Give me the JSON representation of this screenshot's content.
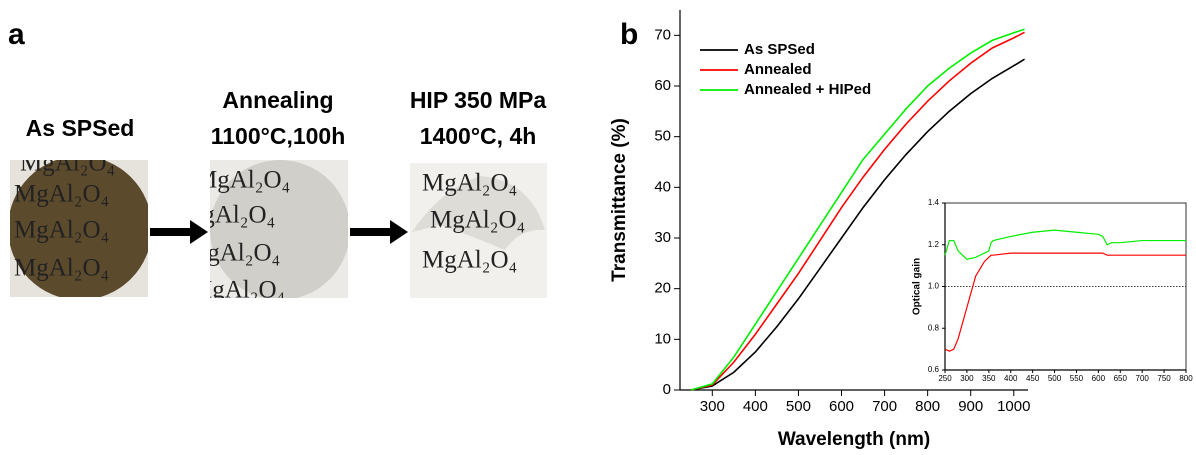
{
  "panel_a": {
    "label": "a",
    "sample_text": "MgAl₂O₄",
    "steps": [
      {
        "lines": [
          "As SPSed"
        ]
      },
      {
        "lines": [
          "Annealing",
          "1100°C,100h"
        ]
      },
      {
        "lines": [
          "HIP 350 MPa",
          "1400°C, 4h"
        ]
      }
    ]
  },
  "chart_data": [
    {
      "type": "line",
      "panel_label": "b",
      "x_label": "Wavelength (nm)",
      "y_label": "Transmittance (%)",
      "x": [
        250,
        300,
        350,
        400,
        450,
        500,
        550,
        600,
        650,
        700,
        750,
        800,
        850,
        900,
        950,
        1000,
        1025
      ],
      "series": [
        {
          "name": "As SPSed",
          "color": "#000000",
          "values": [
            0,
            0.8,
            3.5,
            7.5,
            12.5,
            18,
            24,
            30,
            36,
            41.5,
            46.5,
            51,
            55,
            58.5,
            61.5,
            64,
            65.3
          ]
        },
        {
          "name": "Annealed",
          "color": "#ff0000",
          "values": [
            0,
            1,
            5.5,
            11,
            17,
            23,
            29.5,
            36,
            42,
            47.5,
            52.5,
            57,
            61,
            64.5,
            67.5,
            69.5,
            70.6
          ]
        },
        {
          "name": "Annealed + HIPed",
          "color": "#00ee00",
          "values": [
            0,
            1.2,
            6.5,
            13,
            19.5,
            26,
            32.5,
            39,
            45.5,
            50.5,
            55.5,
            60,
            63.5,
            66.5,
            69,
            70.5,
            71.2
          ]
        }
      ],
      "xlim": [
        225,
        1033
      ],
      "ylim": [
        0,
        75
      ],
      "xticks": [
        300,
        400,
        500,
        600,
        700,
        800,
        900,
        1000
      ],
      "yticks": [
        0,
        10,
        20,
        30,
        40,
        50,
        60,
        70
      ],
      "legend": "upper left"
    },
    {
      "type": "line",
      "y_label": "Optical gain",
      "x": [
        250,
        260,
        270,
        280,
        300,
        320,
        340,
        350,
        355,
        360,
        400,
        450,
        500,
        550,
        600,
        610,
        620,
        630,
        650,
        700,
        750,
        800
      ],
      "series": [
        {
          "color": "#ff0000",
          "values": [
            0.7,
            0.69,
            0.7,
            0.75,
            0.9,
            1.05,
            1.12,
            1.14,
            1.15,
            1.15,
            1.16,
            1.16,
            1.16,
            1.16,
            1.16,
            1.16,
            1.15,
            1.15,
            1.15,
            1.15,
            1.15,
            1.15
          ]
        },
        {
          "color": "#00ee00",
          "values": [
            1.15,
            1.22,
            1.22,
            1.17,
            1.13,
            1.14,
            1.16,
            1.17,
            1.21,
            1.22,
            1.24,
            1.26,
            1.27,
            1.26,
            1.25,
            1.24,
            1.2,
            1.21,
            1.21,
            1.22,
            1.22,
            1.22
          ]
        }
      ],
      "reference_line": 1.0,
      "xlim": [
        250,
        800
      ],
      "ylim": [
        0.6,
        1.4
      ],
      "xticks": [
        250,
        300,
        350,
        400,
        450,
        500,
        550,
        600,
        650,
        700,
        750,
        800
      ],
      "yticks": [
        0.6,
        0.8,
        {
          "value": 1.0,
          "label": "1.0"
        },
        1.2,
        1.4
      ]
    }
  ]
}
